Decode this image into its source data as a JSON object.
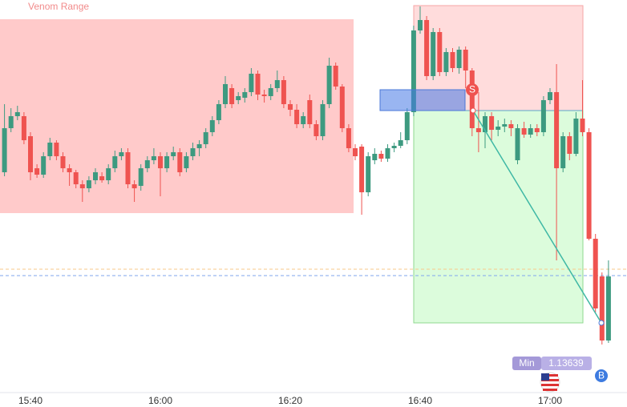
{
  "chart_data": {
    "type": "candlestick",
    "title": "Venom Range",
    "categories": [
      null,
      null,
      null,
      null,
      "15:40",
      null,
      null,
      null,
      null,
      null,
      null,
      null,
      null,
      null,
      null,
      null,
      null,
      null,
      null,
      null,
      null,
      null,
      null,
      null,
      "16:00",
      null,
      null,
      null,
      null,
      null,
      null,
      null,
      null,
      null,
      null,
      null,
      null,
      null,
      null,
      null,
      null,
      null,
      null,
      null,
      "16:20",
      null,
      null,
      null,
      null,
      null,
      null,
      null,
      null,
      null,
      null,
      null,
      null,
      null,
      null,
      null,
      null,
      null,
      null,
      null,
      "16:40",
      null,
      null,
      null,
      null,
      null,
      null,
      null,
      null,
      null,
      null,
      null,
      null,
      null,
      null,
      null,
      null,
      null,
      null,
      null,
      "17:00",
      null,
      null,
      null,
      null,
      null,
      null,
      null,
      null,
      null
    ],
    "open": [
      1.13854,
      1.13909,
      1.13924,
      1.13924,
      1.13899,
      1.13859,
      1.13851,
      1.13874,
      1.13891,
      1.13874,
      1.13859,
      1.13854,
      1.13839,
      1.13834,
      1.13844,
      1.13849,
      1.13844,
      1.13859,
      1.13874,
      1.13879,
      1.13839,
      1.13837,
      1.13859,
      1.13869,
      1.13874,
      1.13859,
      1.13874,
      1.13879,
      1.13859,
      1.13874,
      1.13884,
      1.13889,
      1.13904,
      1.13919,
      1.13939,
      1.13959,
      1.13944,
      1.13947,
      1.13954,
      1.13977,
      1.13951,
      1.13949,
      1.13959,
      1.13969,
      1.13939,
      1.13932,
      1.13914,
      1.13944,
      1.13914,
      1.13899,
      1.13939,
      1.13987,
      1.13961,
      1.13909,
      1.13884,
      1.13886,
      1.13829,
      1.13869,
      1.13877,
      1.13871,
      1.13884,
      1.13887,
      1.13894,
      1.13929,
      1.14031,
      1.14044,
      1.13974,
      1.14029,
      1.13979,
      1.14004,
      1.13984,
      1.14007,
      1.13981,
      1.13909,
      1.13904,
      1.13924,
      1.13907,
      1.13911,
      1.13914,
      1.13869,
      1.13909,
      1.13901,
      1.13909,
      1.13904,
      1.13944,
      1.13954,
      1.13859,
      1.13899,
      1.13877,
      1.13921,
      1.13904,
      1.13771,
      1.13724,
      1.13644
    ],
    "high": [
      1.13939,
      1.13934,
      1.13937,
      1.13929,
      1.13904,
      1.13864,
      1.13879,
      1.13897,
      1.13894,
      1.13879,
      1.13864,
      1.13857,
      1.13844,
      1.13849,
      1.13859,
      1.13854,
      1.13864,
      1.13881,
      1.13884,
      1.13884,
      1.13844,
      1.13864,
      1.13874,
      1.13884,
      1.13879,
      1.13879,
      1.13886,
      1.13884,
      1.13879,
      1.13891,
      1.13894,
      1.13909,
      1.13924,
      1.13944,
      1.13974,
      1.13964,
      1.13954,
      1.13959,
      1.13984,
      1.13981,
      1.13957,
      1.13964,
      1.13981,
      1.13974,
      1.13944,
      1.13939,
      1.13929,
      1.13951,
      1.13919,
      1.13944,
      1.13997,
      1.13991,
      1.13964,
      1.13914,
      1.13889,
      1.13889,
      1.13879,
      1.13884,
      1.13881,
      1.13889,
      1.13891,
      1.13904,
      1.13934,
      1.14037,
      1.14061,
      1.14049,
      1.14034,
      1.14034,
      1.14009,
      1.14009,
      1.14011,
      1.14011,
      1.13984,
      1.13954,
      1.13929,
      1.13929,
      1.13919,
      1.13921,
      1.13919,
      1.13914,
      1.13917,
      1.13914,
      1.13914,
      1.13949,
      1.13959,
      1.13989,
      1.13904,
      1.13904,
      1.13929,
      1.13969,
      1.13909,
      1.13777,
      1.13729,
      1.13744
    ],
    "low": [
      1.13849,
      1.13904,
      1.13919,
      1.13889,
      1.13844,
      1.13847,
      1.13847,
      1.13869,
      1.13869,
      1.13854,
      1.13837,
      1.13834,
      1.13817,
      1.13829,
      1.13839,
      1.13841,
      1.13839,
      1.13854,
      1.13869,
      1.13834,
      1.13817,
      1.13831,
      1.13854,
      1.13864,
      1.13824,
      1.13854,
      1.13869,
      1.13849,
      1.13854,
      1.13869,
      1.13874,
      1.13884,
      1.13899,
      1.13914,
      1.13934,
      1.13934,
      1.13939,
      1.13941,
      1.13949,
      1.13944,
      1.13941,
      1.13944,
      1.13954,
      1.13934,
      1.13924,
      1.13909,
      1.13909,
      1.13909,
      1.13894,
      1.13894,
      1.13934,
      1.13957,
      1.13904,
      1.13879,
      1.13869,
      1.13801,
      1.13824,
      1.13864,
      1.13867,
      1.13867,
      1.13879,
      1.13884,
      1.13889,
      1.13924,
      1.14027,
      1.13969,
      1.13969,
      1.13974,
      1.13974,
      1.13979,
      1.13977,
      1.13959,
      1.13899,
      1.13879,
      1.13884,
      1.13894,
      1.13899,
      1.13904,
      1.13899,
      1.13864,
      1.13897,
      1.13897,
      1.13899,
      1.13899,
      1.13939,
      1.13744,
      1.13854,
      1.13869,
      1.13874,
      1.13899,
      1.13769,
      1.13679,
      1.13639,
      1.13641
    ],
    "close": [
      1.13909,
      1.13924,
      1.13929,
      1.13894,
      1.13854,
      1.13851,
      1.13874,
      1.13891,
      1.13874,
      1.13859,
      1.13854,
      1.13839,
      1.13834,
      1.13844,
      1.13854,
      1.13844,
      1.13859,
      1.13874,
      1.13879,
      1.13839,
      1.13834,
      1.13859,
      1.13869,
      1.13874,
      1.13859,
      1.13874,
      1.13879,
      1.13854,
      1.13874,
      1.13884,
      1.13889,
      1.13904,
      1.13919,
      1.13939,
      1.13964,
      1.13939,
      1.13949,
      1.13954,
      1.13977,
      1.13951,
      1.13949,
      1.13959,
      1.13969,
      1.13939,
      1.13932,
      1.13914,
      1.13924,
      1.13914,
      1.13899,
      1.13939,
      1.13987,
      1.13961,
      1.13909,
      1.13884,
      1.13874,
      1.13829,
      1.13874,
      1.13877,
      1.13871,
      1.13884,
      1.13887,
      1.13894,
      1.13929,
      1.14031,
      1.14044,
      1.13974,
      1.14029,
      1.13979,
      1.14004,
      1.13984,
      1.14007,
      1.13981,
      1.13909,
      1.13904,
      1.13924,
      1.13907,
      1.13911,
      1.13914,
      1.13909,
      1.13909,
      1.13901,
      1.13909,
      1.13904,
      1.13944,
      1.13954,
      1.13859,
      1.13899,
      1.13877,
      1.13921,
      1.13904,
      1.13771,
      1.13684,
      1.13644,
      1.13724
    ],
    "up_color": "#3d9a80",
    "down_color": "#ef5350",
    "ylim": [
      1.13579,
      1.14069
    ],
    "annotations": {
      "sell": "S",
      "buy": "B",
      "min": {
        "label": "Min",
        "value": "1.13639"
      }
    }
  }
}
